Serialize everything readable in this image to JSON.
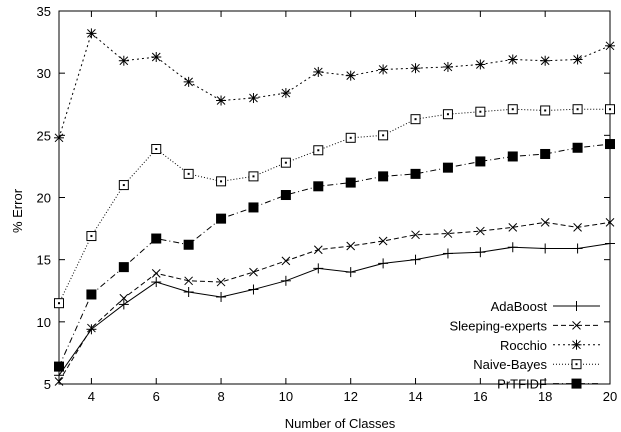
{
  "chart_data": {
    "type": "line",
    "title": "",
    "xlabel": "Number of Classes",
    "ylabel": "% Error",
    "xlim": [
      3,
      20
    ],
    "ylim": [
      5,
      35
    ],
    "xticks": [
      4,
      6,
      8,
      10,
      12,
      14,
      16,
      18,
      20
    ],
    "yticks": [
      5,
      10,
      15,
      20,
      25,
      30,
      35
    ],
    "grid": false,
    "legend_position": "bottom-right",
    "x": [
      3,
      4,
      5,
      6,
      7,
      8,
      9,
      10,
      11,
      12,
      13,
      14,
      15,
      16,
      17,
      18,
      19,
      20
    ],
    "series": [
      {
        "name": "AdaBoost",
        "marker": "plus",
        "dash": "solid",
        "values": [
          5.7,
          9.4,
          11.4,
          13.2,
          12.4,
          12.0,
          12.6,
          13.3,
          14.3,
          14.0,
          14.7,
          15.0,
          15.5,
          15.6,
          16.0,
          15.9,
          15.9,
          16.3
        ]
      },
      {
        "name": "Sleeping-experts",
        "marker": "cross",
        "dash": "dashed",
        "values": [
          5.2,
          9.5,
          11.9,
          13.9,
          13.3,
          13.2,
          14.0,
          14.9,
          15.8,
          16.1,
          16.5,
          17.0,
          17.1,
          17.3,
          17.6,
          18.0,
          17.6,
          18.0
        ]
      },
      {
        "name": "Rocchio",
        "marker": "star",
        "dash": "dotted",
        "values": [
          24.8,
          33.2,
          31.0,
          31.3,
          29.3,
          27.8,
          28.0,
          28.4,
          30.1,
          29.8,
          30.3,
          30.4,
          30.5,
          30.7,
          31.1,
          31.0,
          31.1,
          32.2
        ]
      },
      {
        "name": "Naive-Bayes",
        "marker": "square-open",
        "dash": "fine-dotted",
        "values": [
          11.5,
          16.9,
          21.0,
          23.9,
          21.9,
          21.3,
          21.7,
          22.8,
          23.8,
          24.8,
          25.0,
          26.3,
          26.7,
          26.9,
          27.1,
          27.0,
          27.1,
          27.1
        ]
      },
      {
        "name": "PrTFIDF",
        "marker": "square-filled",
        "dash": "dash-dot",
        "values": [
          6.4,
          12.2,
          14.4,
          16.7,
          16.2,
          18.3,
          19.2,
          20.2,
          20.9,
          21.2,
          21.7,
          21.9,
          22.4,
          22.9,
          23.3,
          23.5,
          24.0,
          24.3
        ]
      }
    ]
  }
}
